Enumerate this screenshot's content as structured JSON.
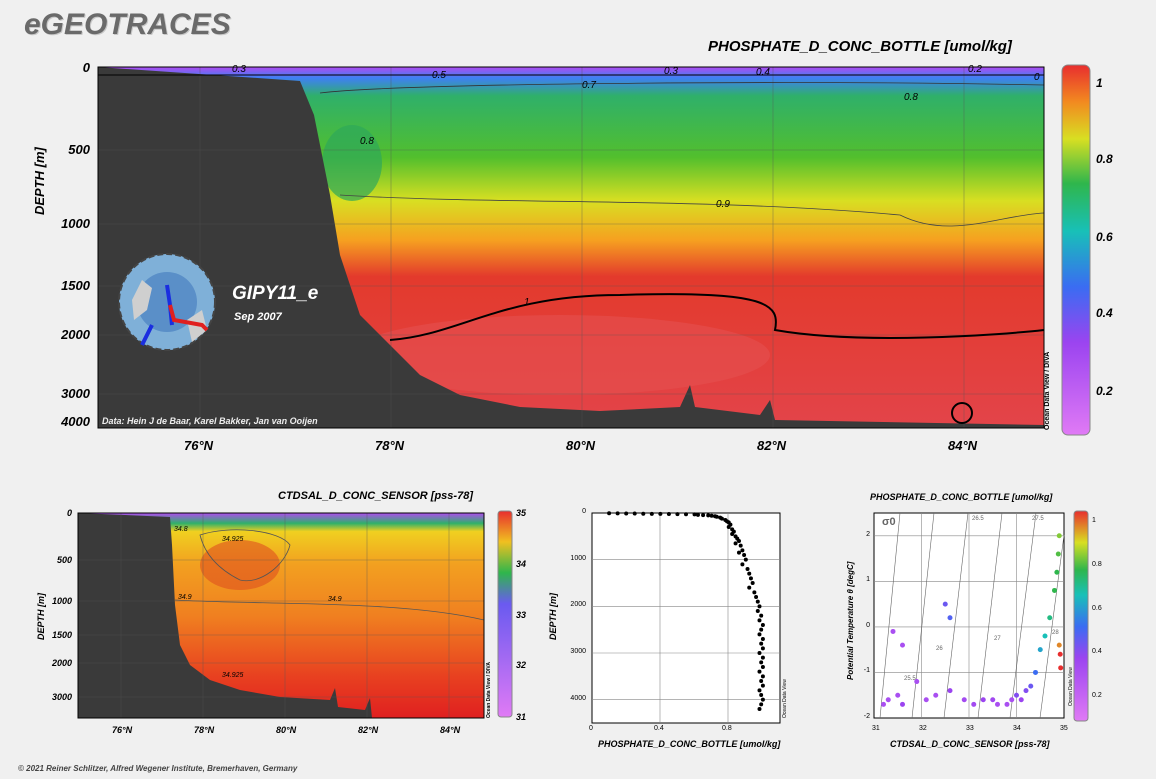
{
  "header": {
    "logo": "eGEOTRACES",
    "copyright": "© 2021 Reiner Schlitzer, Alfred Wegener Institute, Bremerhaven, Germany"
  },
  "watermark": "Ocean Data View / DIVA",
  "watermark_short": "Ocean Data View",
  "colors": {
    "land": "#3a3a3a",
    "background": "#f0f0f0"
  },
  "main_section": {
    "title": "PHOSPHATE_D_CONC_BOTTLE [umol/kg]",
    "ylabel": "DEPTH [m]",
    "data_credit": "Data: Hein J de Baar, Karel Bakker, Jan van Ooijen",
    "cruise": "GIPY11_e",
    "date": "Sep 2007",
    "y_ticks": [
      "0",
      "500",
      "1000",
      "1500",
      "2000",
      "3000",
      "4000"
    ],
    "x_ticks": [
      "76°N",
      "78°N",
      "80°N",
      "82°N",
      "84°N"
    ],
    "colorbar_ticks": [
      "0.2",
      "0.4",
      "0.6",
      "0.8",
      "1"
    ],
    "contour_labels": [
      "0.3",
      "0.5",
      "0.3",
      "0.4",
      "0.2",
      "0",
      "0.7",
      "0.8",
      "0.8",
      "0.9",
      "1"
    ]
  },
  "bottom_left": {
    "title": "CTDSAL_D_CONC_SENSOR [pss-78]",
    "ylabel": "DEPTH [m]",
    "y_ticks": [
      "0",
      "500",
      "1000",
      "1500",
      "2000",
      "3000"
    ],
    "x_ticks": [
      "76°N",
      "78°N",
      "80°N",
      "82°N",
      "84°N"
    ],
    "colorbar_ticks": [
      "31",
      "32",
      "33",
      "34",
      "35"
    ],
    "contour_labels": [
      "34.925",
      "34.9",
      "34.9",
      "34.925",
      "34.8"
    ]
  },
  "chart_data": [
    {
      "type": "scatter",
      "title": "",
      "xlabel": "PHOSPHATE_D_CONC_BOTTLE [umol/kg]",
      "ylabel": "DEPTH [m]",
      "xlim": [
        0,
        1.1
      ],
      "ylim": [
        4500,
        0
      ],
      "x_ticks": [
        "0",
        "0.4",
        "0.8"
      ],
      "y_ticks": [
        "0",
        "1000",
        "2000",
        "3000",
        "4000"
      ],
      "points": [
        [
          0.1,
          5
        ],
        [
          0.15,
          8
        ],
        [
          0.2,
          10
        ],
        [
          0.25,
          12
        ],
        [
          0.3,
          15
        ],
        [
          0.35,
          18
        ],
        [
          0.4,
          20
        ],
        [
          0.45,
          22
        ],
        [
          0.5,
          25
        ],
        [
          0.55,
          28
        ],
        [
          0.6,
          30
        ],
        [
          0.62,
          40
        ],
        [
          0.65,
          45
        ],
        [
          0.68,
          50
        ],
        [
          0.7,
          60
        ],
        [
          0.72,
          70
        ],
        [
          0.73,
          80
        ],
        [
          0.75,
          100
        ],
        [
          0.76,
          120
        ],
        [
          0.78,
          150
        ],
        [
          0.79,
          180
        ],
        [
          0.8,
          200
        ],
        [
          0.81,
          250
        ],
        [
          0.8,
          300
        ],
        [
          0.82,
          350
        ],
        [
          0.83,
          400
        ],
        [
          0.82,
          450
        ],
        [
          0.84,
          500
        ],
        [
          0.85,
          550
        ],
        [
          0.86,
          600
        ],
        [
          0.84,
          650
        ],
        [
          0.87,
          700
        ],
        [
          0.88,
          800
        ],
        [
          0.86,
          850
        ],
        [
          0.89,
          900
        ],
        [
          0.9,
          1000
        ],
        [
          0.88,
          1100
        ],
        [
          0.91,
          1200
        ],
        [
          0.92,
          1300
        ],
        [
          0.93,
          1400
        ],
        [
          0.94,
          1500
        ],
        [
          0.92,
          1600
        ],
        [
          0.95,
          1700
        ],
        [
          0.96,
          1800
        ],
        [
          0.97,
          1900
        ],
        [
          0.98,
          2000
        ],
        [
          0.97,
          2100
        ],
        [
          0.99,
          2200
        ],
        [
          0.98,
          2300
        ],
        [
          1.0,
          2400
        ],
        [
          0.99,
          2500
        ],
        [
          0.98,
          2600
        ],
        [
          1.0,
          2700
        ],
        [
          0.99,
          2800
        ],
        [
          1.0,
          2900
        ],
        [
          0.98,
          3000
        ],
        [
          1.0,
          3100
        ],
        [
          0.99,
          3200
        ],
        [
          1.0,
          3300
        ],
        [
          0.98,
          3400
        ],
        [
          1.0,
          3500
        ],
        [
          0.99,
          3600
        ],
        [
          1.0,
          3700
        ],
        [
          0.98,
          3800
        ],
        [
          0.99,
          3900
        ],
        [
          1.0,
          4000
        ],
        [
          0.99,
          4100
        ],
        [
          0.98,
          4200
        ]
      ]
    },
    {
      "type": "scatter",
      "title": "PHOSPHATE_D_CONC_BOTTLE [umol/kg]",
      "xlabel": "CTDSAL_D_CONC_SENSOR [pss-78]",
      "ylabel": "Potential Temperature θ [degC]",
      "annotation": "σ0",
      "isopycnal_labels": [
        "25.5",
        "26",
        "26.5",
        "27",
        "27.5",
        "28"
      ],
      "xlim": [
        31,
        35
      ],
      "ylim": [
        -2,
        2.5
      ],
      "x_ticks": [
        "31",
        "32",
        "33",
        "34",
        "35"
      ],
      "y_ticks": [
        "-2",
        "-1",
        "0",
        "1",
        "2"
      ],
      "colorbar_ticks": [
        "0.2",
        "0.4",
        "0.6",
        "0.8",
        "1"
      ],
      "points": [
        [
          31.2,
          -1.7,
          0.3
        ],
        [
          31.3,
          -1.6,
          0.3
        ],
        [
          31.5,
          -1.5,
          0.3
        ],
        [
          31.6,
          -1.7,
          0.35
        ],
        [
          31.9,
          -1.2,
          0.3
        ],
        [
          32.1,
          -1.6,
          0.3
        ],
        [
          32.3,
          -1.5,
          0.3
        ],
        [
          32.6,
          -1.4,
          0.35
        ],
        [
          32.9,
          -1.6,
          0.32
        ],
        [
          33.1,
          -1.7,
          0.32
        ],
        [
          33.3,
          -1.6,
          0.35
        ],
        [
          33.5,
          -1.6,
          0.33
        ],
        [
          33.6,
          -1.7,
          0.3
        ],
        [
          33.8,
          -1.7,
          0.3
        ],
        [
          33.9,
          -1.6,
          0.3
        ],
        [
          34.0,
          -1.5,
          0.4
        ],
        [
          34.1,
          -1.6,
          0.35
        ],
        [
          34.2,
          -1.4,
          0.4
        ],
        [
          34.3,
          -1.3,
          0.45
        ],
        [
          34.4,
          -1.0,
          0.55
        ],
        [
          34.5,
          -0.5,
          0.65
        ],
        [
          34.6,
          -0.2,
          0.7
        ],
        [
          34.7,
          0.2,
          0.75
        ],
        [
          34.8,
          0.8,
          0.8
        ],
        [
          34.85,
          1.2,
          0.8
        ],
        [
          34.88,
          1.6,
          0.82
        ],
        [
          34.9,
          2.0,
          0.85
        ],
        [
          34.92,
          -0.6,
          1.0
        ],
        [
          34.93,
          -0.9,
          1.0
        ],
        [
          34.9,
          -0.4,
          0.95
        ],
        [
          32.5,
          0.5,
          0.45
        ],
        [
          32.6,
          0.2,
          0.5
        ],
        [
          31.4,
          -0.1,
          0.3
        ],
        [
          31.6,
          -0.4,
          0.3
        ]
      ]
    }
  ]
}
